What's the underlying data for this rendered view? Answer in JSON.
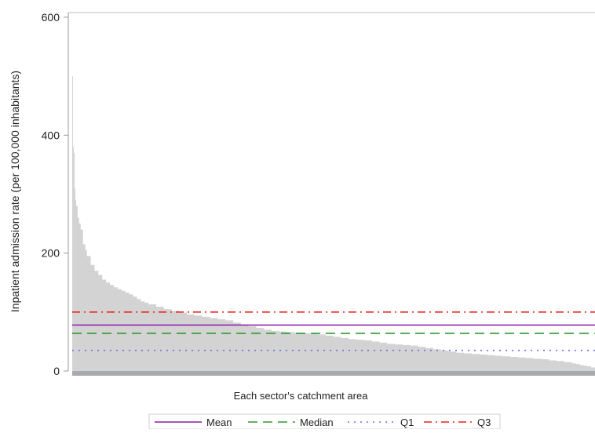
{
  "chart_data": {
    "type": "area",
    "title": "",
    "xlabel": "Each sector's catchment area",
    "ylabel": "Inpatient admission rate (per 100,000 inhabitants)",
    "ylim": [
      0,
      600
    ],
    "yticks": [
      0,
      200,
      400,
      600
    ],
    "grid": false,
    "legend_position": "bottom",
    "colors": {
      "fill": "#d3d3d3",
      "axis": "#999999",
      "mean": "#8b1fa9",
      "median": "#2e9a2e",
      "q1": "#6f6fe8",
      "q3": "#e8231f",
      "xaxis_band": "#a8aab0"
    },
    "series": {
      "x_rank": [
        1,
        2,
        3,
        4,
        5,
        6,
        8,
        10,
        12,
        15,
        18,
        20,
        25,
        30,
        35,
        40,
        45,
        50,
        55,
        60,
        65,
        70,
        75,
        80,
        85,
        90,
        95,
        100,
        110,
        120,
        130,
        140,
        150,
        160,
        170,
        180,
        190,
        200,
        210,
        220,
        230,
        240,
        250,
        260,
        270,
        280,
        290,
        300,
        310,
        320,
        330,
        340,
        350,
        360,
        370,
        380,
        390,
        400,
        410,
        420,
        430,
        440,
        450,
        460,
        470,
        480,
        490,
        500,
        510,
        520,
        530,
        540,
        550,
        560,
        570,
        580,
        590,
        600,
        610,
        620,
        630,
        640,
        650,
        655,
        660,
        665,
        670,
        675,
        680
      ],
      "values": [
        500,
        380,
        370,
        310,
        290,
        280,
        260,
        250,
        240,
        215,
        205,
        195,
        180,
        170,
        163,
        155,
        150,
        146,
        142,
        139,
        136,
        133,
        130,
        126,
        122,
        118,
        116,
        113,
        109,
        105,
        102,
        99,
        96,
        94,
        92,
        90,
        88,
        86,
        82,
        79,
        76,
        73,
        70,
        68,
        67,
        66,
        65,
        64,
        63,
        62,
        60,
        58,
        56,
        54,
        53,
        52,
        50,
        48,
        46,
        45,
        44,
        43,
        41,
        39,
        37,
        35,
        33,
        31,
        30,
        29,
        28,
        27,
        26,
        25,
        24,
        23,
        22,
        21,
        20,
        18,
        17,
        15,
        13,
        12,
        10,
        9,
        8,
        6,
        4
      ]
    },
    "reference_lines": [
      {
        "name": "Mean",
        "value": 78,
        "style": "solid",
        "color_key": "mean"
      },
      {
        "name": "Median",
        "value": 64,
        "style": "dash",
        "color_key": "median"
      },
      {
        "name": "Q1",
        "value": 35,
        "style": "dot",
        "color_key": "q1"
      },
      {
        "name": "Q3",
        "value": 100,
        "style": "dashdot",
        "color_key": "q3"
      }
    ]
  },
  "legend": {
    "items": [
      {
        "label": "Mean"
      },
      {
        "label": "Median"
      },
      {
        "label": "Q1"
      },
      {
        "label": "Q3"
      }
    ]
  }
}
